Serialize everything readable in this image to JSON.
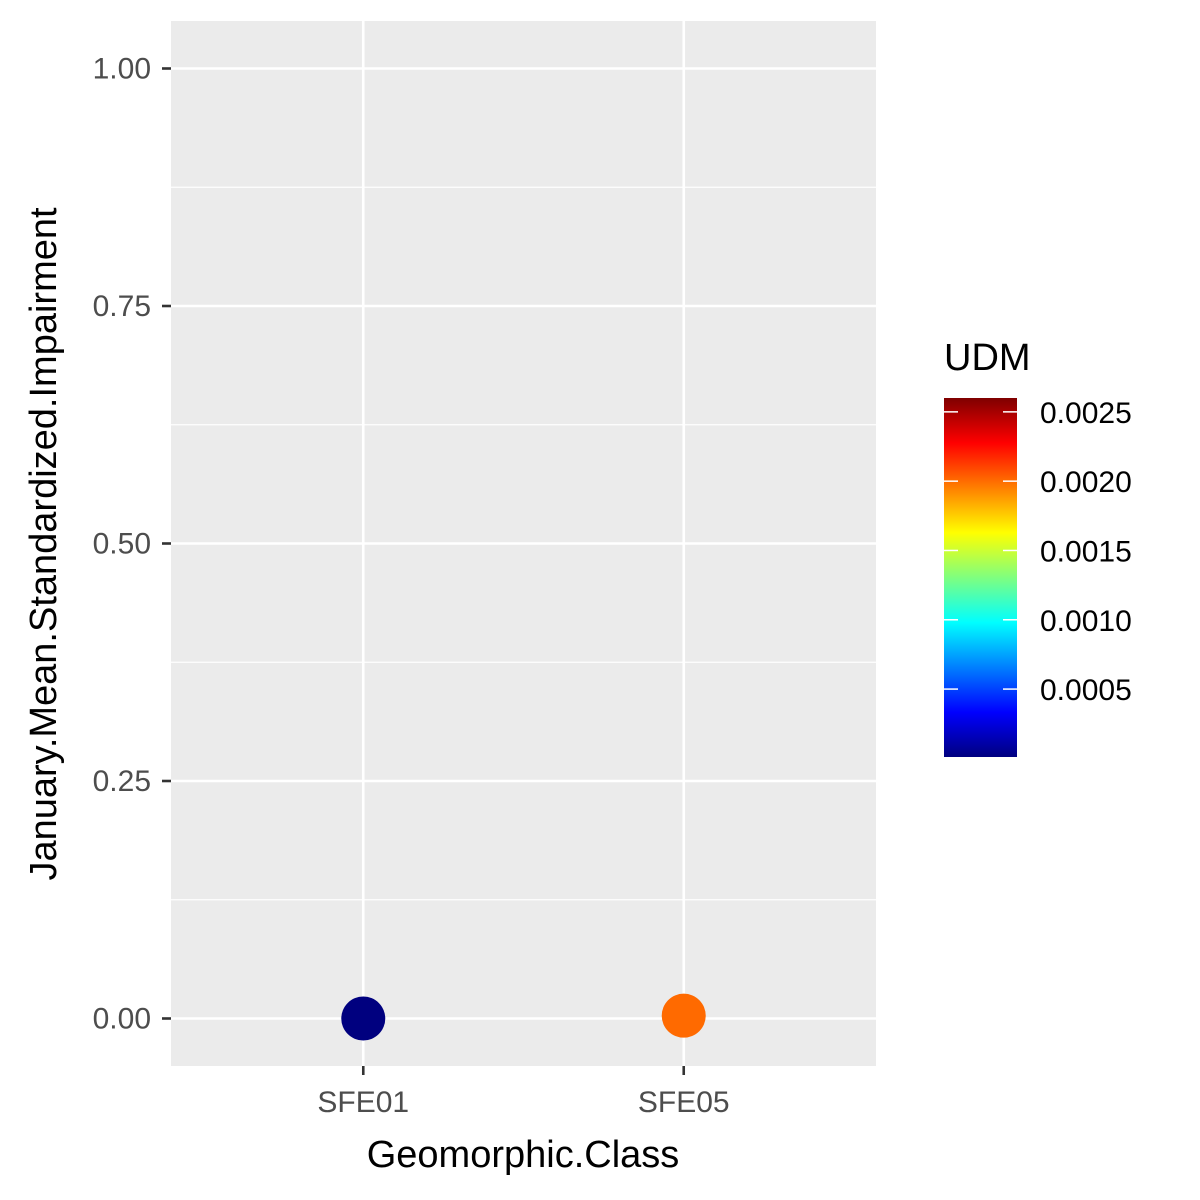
{
  "chart_data": {
    "type": "scatter",
    "title": "",
    "xlabel": "Geomorphic.Class",
    "ylabel": "January.Mean.Standardized.Impairment",
    "categories": [
      "SFE01",
      "SFE05"
    ],
    "points": [
      {
        "x": "SFE01",
        "y": 0.0,
        "udm": 1e-05,
        "color": "#00007f"
      },
      {
        "x": "SFE05",
        "y": 0.003,
        "udm": 0.00205,
        "color": "#ff6a00"
      }
    ],
    "ylim": [
      -0.05,
      1.05
    ],
    "y_ticks": [
      "0.00",
      "0.25",
      "0.50",
      "0.75",
      "1.00"
    ],
    "y_tick_values": [
      0,
      0.25,
      0.5,
      0.75,
      1.0
    ],
    "grid": true,
    "panel_background": "#ebebeb",
    "legend": {
      "title": "UDM",
      "placement": "right",
      "range": [
        1e-05,
        0.0026
      ],
      "tick_labels": [
        "0.0005",
        "0.0010",
        "0.0015",
        "0.0020",
        "0.0025"
      ],
      "tick_values": [
        0.0005,
        0.001,
        0.0015,
        0.002,
        0.0025
      ],
      "colormap": [
        "#00007f",
        "#0000ff",
        "#007fff",
        "#00ffff",
        "#7fff7f",
        "#ffff00",
        "#ff7f00",
        "#ff0000",
        "#7f0000"
      ]
    }
  }
}
